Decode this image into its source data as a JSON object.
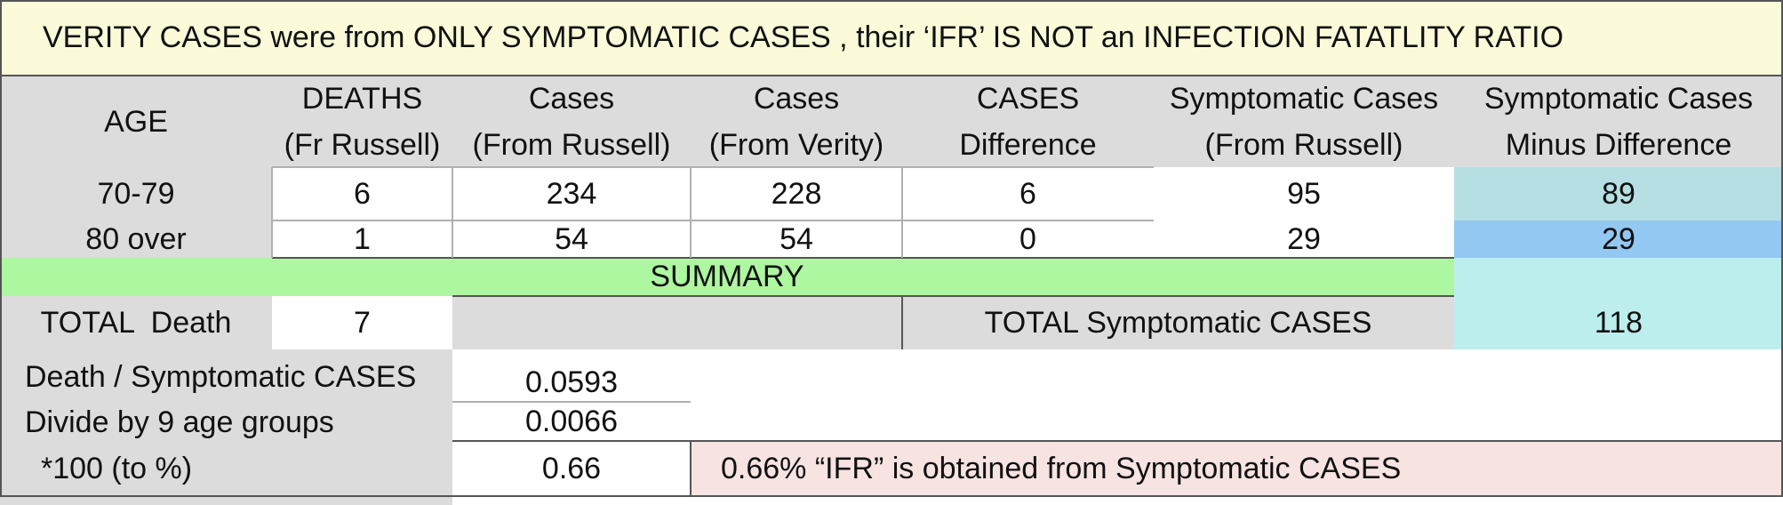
{
  "title": "VERITY CASES were from ONLY SYMPTOMATIC CASES , their ‘IFR’ IS NOT an INFECTION FATATLITY RATIO",
  "colors": {
    "title_bg": "#fbfbd9",
    "gray": "#dcdcdc",
    "summary_green": "#adf7a0",
    "teal": "#b6dfe4",
    "blue": "#93c8f2",
    "cyan": "#bdeeee",
    "pink": "#f8e3e3"
  },
  "table": {
    "headers": [
      [
        "",
        "AGE"
      ],
      [
        "DEATHS",
        "(Fr Russell)"
      ],
      [
        "Cases",
        "(From Russell)"
      ],
      [
        "Cases",
        "(From Verity)"
      ],
      [
        "CASES",
        "Difference"
      ],
      [
        "Symptomatic Cases",
        "(From Russell)"
      ],
      [
        "Symptomatic Cases",
        "Minus Difference"
      ]
    ],
    "rows": [
      [
        "70-79",
        "6",
        "234",
        "228",
        "6",
        "95",
        "89"
      ],
      [
        "80 over",
        "1",
        "54",
        "54",
        "0",
        "29",
        "29"
      ]
    ]
  },
  "summary": {
    "label": "SUMMARY",
    "total_death_label": "TOTAL  Death",
    "total_death_value": "7",
    "total_symptomatic_label": "TOTAL Symptomatic CASES",
    "total_symptomatic_value": "118"
  },
  "calc": [
    {
      "label": "Death / Symptomatic CASES",
      "value": "0.0593"
    },
    {
      "label": "Divide by 9 age groups",
      "value": "0.0066"
    },
    {
      "label": "*100 (to %)",
      "value": "0.66"
    }
  ],
  "conclusion": "0.66% “IFR” is obtained from Symptomatic CASES"
}
